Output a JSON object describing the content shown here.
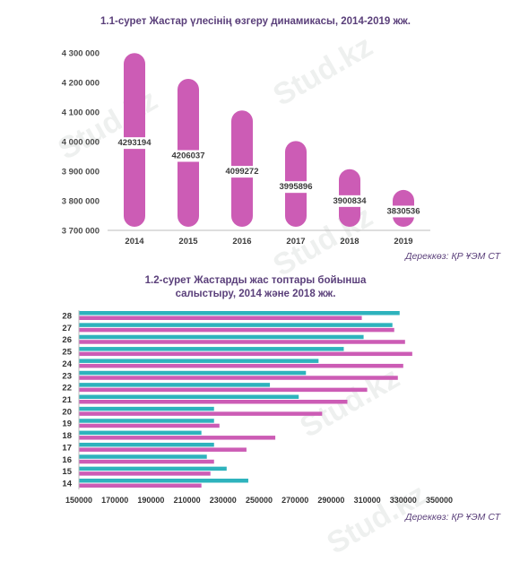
{
  "watermark": "Stud.kz",
  "chart_data": [
    {
      "type": "bar",
      "title": "1.1-сурет Жастар үлесінің өзгеру динамикасы, 2014-2019 жж.",
      "source": "Дереккөз: ҚР ҰЭМ СТ",
      "categories": [
        "2014",
        "2015",
        "2016",
        "2017",
        "2018",
        "2019"
      ],
      "values": [
        4293194,
        4206037,
        4099272,
        3995896,
        3900834,
        3830536
      ],
      "value_labels": [
        "4293194",
        "4206037",
        "4099272",
        "3995896",
        "3900834",
        "3830536"
      ],
      "ylim": [
        3700000,
        4300000
      ],
      "yticks": [
        3700000,
        3800000,
        3900000,
        4000000,
        4100000,
        4200000,
        4300000
      ],
      "ytick_labels": [
        "3 700 000",
        "3 800 000",
        "3 900 000",
        "4 000 000",
        "4 100 000",
        "4 200 000",
        "4 300 000"
      ],
      "grid": false,
      "colors": {
        "bar": "#cc5cb5"
      }
    },
    {
      "type": "bar",
      "orientation": "horizontal",
      "title": "1.2-сурет Жастарды жас топтары бойынша салыстыру, 2014 және 2018 жж.",
      "source": "Дереккөз: ҚР ҰЭМ СТ",
      "categories": [
        "14",
        "15",
        "16",
        "17",
        "18",
        "19",
        "20",
        "21",
        "22",
        "23",
        "24",
        "25",
        "26",
        "27",
        "28"
      ],
      "series": [
        {
          "values": [
            244000,
            232000,
            221000,
            225000,
            218000,
            225000,
            225000,
            272000,
            256000,
            276000,
            283000,
            297000,
            308000,
            324000,
            328000
          ],
          "color": "#2eb3bd"
        },
        {
          "values": [
            218000,
            223000,
            225000,
            243000,
            259000,
            228000,
            285000,
            299000,
            310000,
            327000,
            330000,
            335000,
            331000,
            325000,
            307000
          ],
          "color": "#cc5cb5"
        }
      ],
      "xlim": [
        150000,
        350000
      ],
      "xticks": [
        150000,
        170000,
        190000,
        210000,
        230000,
        250000,
        270000,
        290000,
        310000,
        330000,
        350000
      ],
      "xtick_labels": [
        "150000",
        "170000",
        "190000",
        "210000",
        "230000",
        "250000",
        "270000",
        "290000",
        "310000",
        "330000",
        "350000"
      ],
      "grid": false
    }
  ]
}
